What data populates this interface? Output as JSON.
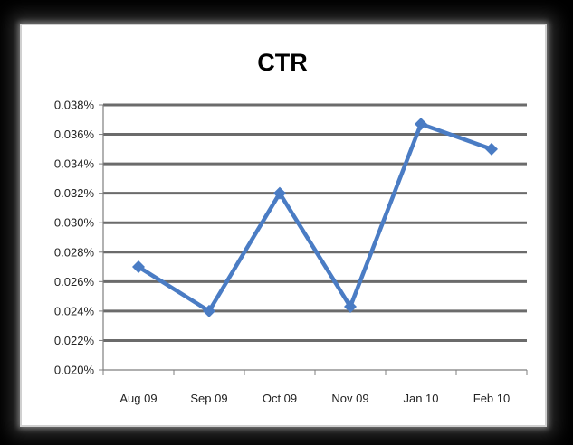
{
  "chart_data": {
    "type": "line",
    "title": "CTR",
    "categories": [
      "Aug 09",
      "Sep 09",
      "Oct 09",
      "Nov 09",
      "Jan 10",
      "Feb 10"
    ],
    "series": [
      {
        "values": [
          0.027,
          0.024,
          0.032,
          0.0243,
          0.0367,
          0.035
        ]
      }
    ],
    "ylim": [
      0.02,
      0.038
    ],
    "yticks": [
      0.02,
      0.022,
      0.024,
      0.026,
      0.028,
      0.03,
      0.032,
      0.034,
      0.036,
      0.038
    ],
    "ytick_labels": [
      "0.020%",
      "0.022%",
      "0.024%",
      "0.026%",
      "0.028%",
      "0.030%",
      "0.032%",
      "0.034%",
      "0.036%",
      "0.038%"
    ],
    "xlabel": "",
    "ylabel": "",
    "grid": true,
    "legend": "none",
    "colors": {
      "line": "#4a7cc4",
      "grid": "#6b6b6b",
      "axis": "#7f7f7f"
    }
  }
}
